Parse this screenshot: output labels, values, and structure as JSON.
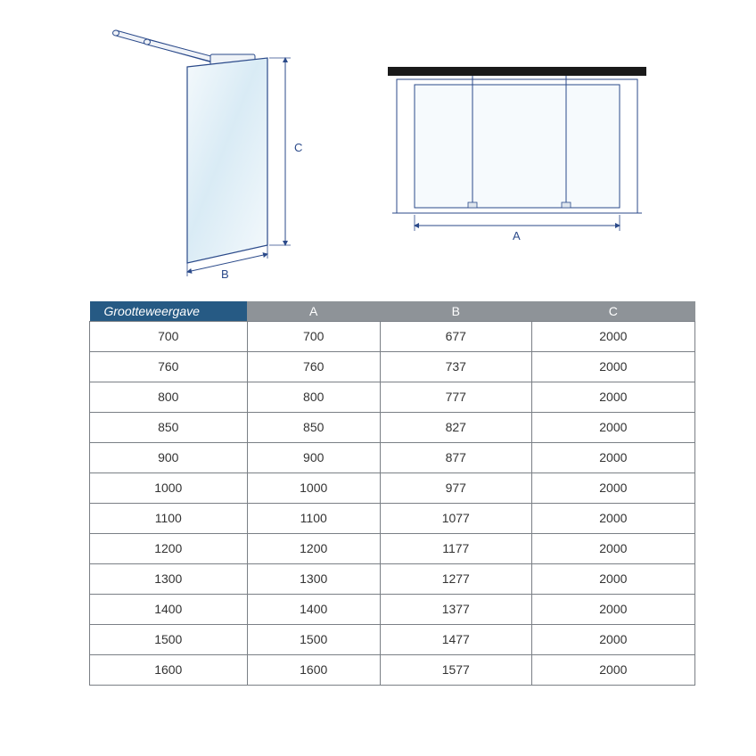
{
  "colors": {
    "outline": "#2b4a8a",
    "glass_fill_light": "#e8f2f9",
    "glass_fill_mid": "#cfe5f1",
    "bar_fill": "#e8edf3",
    "dim_line": "#2b4a8a",
    "header_first_bg": "#265a84",
    "header_rest_bg": "#8e9398",
    "header_rest_text": "#ffffff",
    "table_border": "#7a7f85",
    "black_bar": "#1a1a1a"
  },
  "labels": {
    "dimA": "A",
    "dimB": "B",
    "dimC": "C"
  },
  "table": {
    "headers": [
      "Grootteweergave",
      "A",
      "B",
      "C"
    ],
    "rows": [
      [
        "700",
        "700",
        "677",
        "2000"
      ],
      [
        "760",
        "760",
        "737",
        "2000"
      ],
      [
        "800",
        "800",
        "777",
        "2000"
      ],
      [
        "850",
        "850",
        "827",
        "2000"
      ],
      [
        "900",
        "900",
        "877",
        "2000"
      ],
      [
        "1000",
        "1000",
        "977",
        "2000"
      ],
      [
        "1100",
        "1100",
        "1077",
        "2000"
      ],
      [
        "1200",
        "1200",
        "1177",
        "2000"
      ],
      [
        "1300",
        "1300",
        "1277",
        "2000"
      ],
      [
        "1400",
        "1400",
        "1377",
        "2000"
      ],
      [
        "1500",
        "1500",
        "1477",
        "2000"
      ],
      [
        "1600",
        "1600",
        "1577",
        "2000"
      ]
    ]
  },
  "fontSizes": {
    "label": 13,
    "table": 14
  }
}
